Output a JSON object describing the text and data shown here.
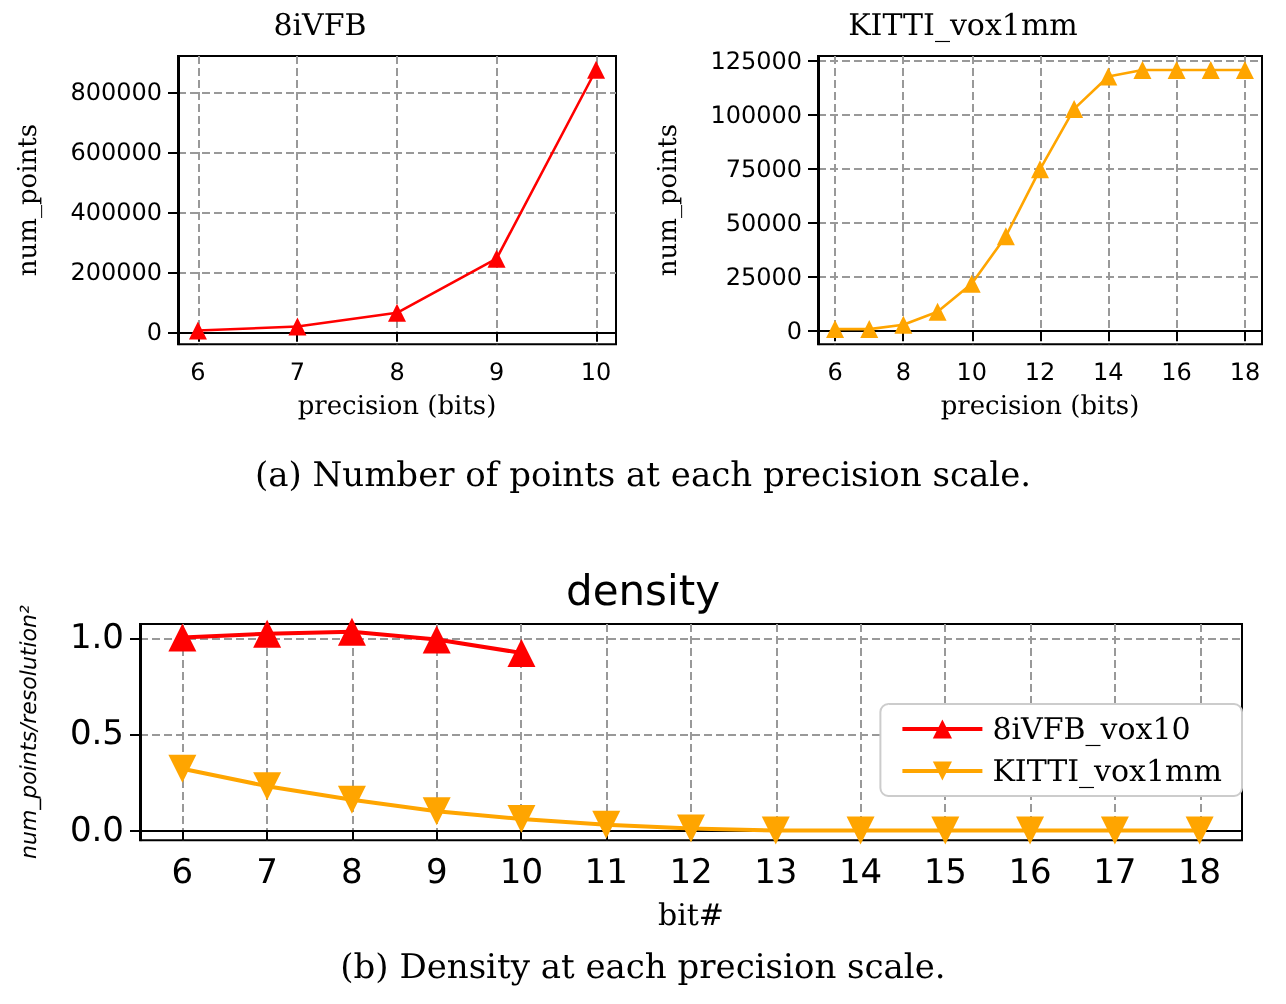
{
  "chart_data": [
    {
      "type": "line",
      "title": "8iVFB",
      "xlabel": "precision (bits)",
      "ylabel": "num_points",
      "x": [
        6,
        7,
        8,
        9,
        10
      ],
      "series": [
        {
          "color": "#ff0000",
          "values": [
            4000,
            17000,
            63000,
            244000,
            876000
          ]
        }
      ],
      "xlim": [
        5.8,
        10.2
      ],
      "xticks": [
        6,
        7,
        8,
        9,
        10
      ],
      "ylim": [
        -42000,
        922000
      ],
      "yticks": [
        0,
        200000,
        400000,
        600000,
        800000
      ],
      "grid": true,
      "legend": false,
      "marker": "triangle",
      "annotations": [
        "(a) Number of points at each precision scale."
      ]
    },
    {
      "type": "line",
      "title": "KITTI_vox1mm",
      "xlabel": "precision (bits)",
      "ylabel": "num_points",
      "x": [
        6,
        7,
        8,
        9,
        10,
        11,
        12,
        13,
        14,
        15,
        16,
        17,
        18
      ],
      "series": [
        {
          "color": "#ffa500",
          "values": [
            1000,
            1000,
            3000,
            9000,
            22000,
            44000,
            75000,
            103000,
            118000,
            121000,
            121000,
            121000,
            121000
          ]
        }
      ],
      "xlim": [
        5.5,
        18.5
      ],
      "xticks": [
        6,
        8,
        10,
        12,
        14,
        16,
        18
      ],
      "ylim": [
        -6000,
        127500
      ],
      "yticks": [
        0,
        25000,
        50000,
        75000,
        100000,
        125000
      ],
      "grid": true,
      "legend": false,
      "marker": "triangle"
    },
    {
      "type": "line",
      "title": "density",
      "xlabel": "bit#",
      "ylabel": "num_points/resolution²",
      "series": [
        {
          "name": "8iVFB_vox10",
          "color": "#ff0000",
          "x": [
            6,
            7,
            8,
            9,
            10
          ],
          "values": [
            1.0,
            1.02,
            1.03,
            0.99,
            0.92
          ],
          "marker": "triangle"
        },
        {
          "name": "KITTI_vox1mm",
          "color": "#ffa500",
          "x": [
            6,
            7,
            8,
            9,
            10,
            11,
            12,
            13,
            14,
            15,
            16,
            17,
            18
          ],
          "values": [
            0.32,
            0.23,
            0.16,
            0.1,
            0.06,
            0.03,
            0.01,
            0.0,
            0.0,
            0.0,
            0.0,
            0.0,
            0.0
          ],
          "marker": "triangle-down"
        }
      ],
      "xlim": [
        5.5,
        18.5
      ],
      "xticks": [
        6,
        7,
        8,
        9,
        10,
        11,
        12,
        13,
        14,
        15,
        16,
        17,
        18
      ],
      "ylim": [
        -0.05,
        1.07
      ],
      "yticks": [
        {
          "value": 0,
          "label": "0.0"
        },
        {
          "value": 0.5,
          "label": "0.5"
        },
        {
          "value": 1,
          "label": "1.0"
        }
      ],
      "grid": true,
      "legend": "right",
      "annotations": [
        "(b) Density at each precision scale."
      ]
    }
  ]
}
